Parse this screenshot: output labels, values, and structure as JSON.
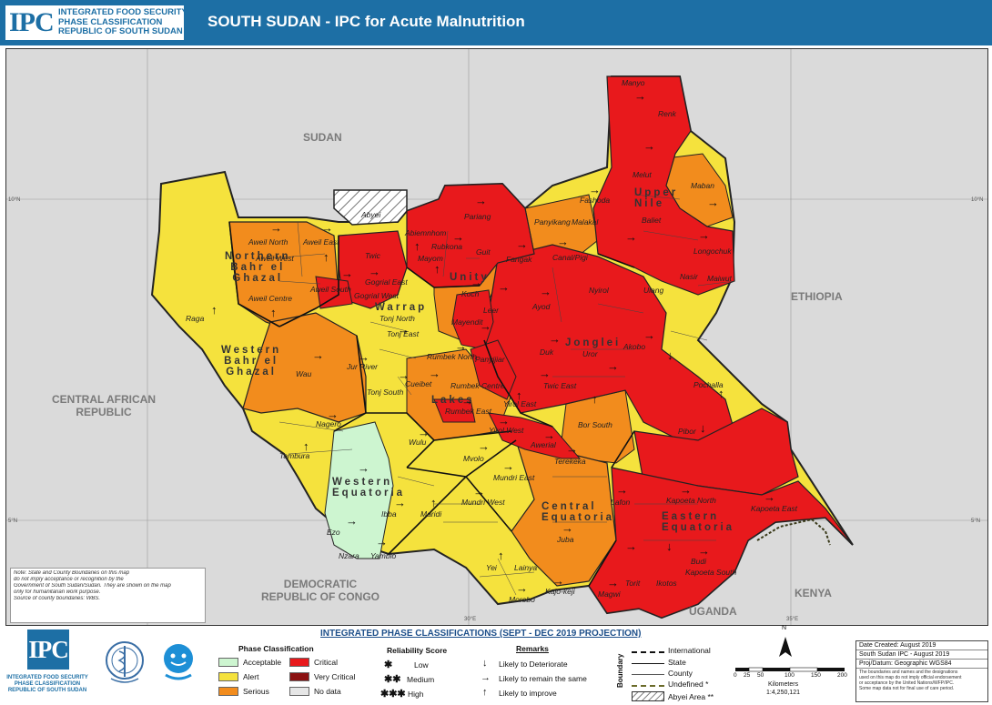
{
  "header": {
    "logo_text": "IPC",
    "org_lines": [
      "INTEGRATED FOOD SECURITY",
      "PHASE CLASSIFICATION",
      "REPUBLIC OF SOUTH SUDAN"
    ],
    "title": "SOUTH SUDAN - IPC for Acute Malnutrition"
  },
  "colors": {
    "acceptable": "#cdf5d0",
    "alert": "#f5e23d",
    "serious": "#f28c1d",
    "critical": "#e8191c",
    "very_critical": "#8b1111",
    "no_data": "#e6e6e6",
    "header": "#1d6fa5"
  },
  "map": {
    "countries": [
      {
        "name": "SUDAN"
      },
      {
        "name": "ETHIOPIA"
      },
      {
        "name": "CENTRAL AFRICAN\nREPUBLIC"
      },
      {
        "name": "DEMOCRATIC\nREPUBLIC OF CONGO"
      },
      {
        "name": "UGANDA"
      },
      {
        "name": "KENYA"
      }
    ],
    "states": [
      {
        "name": "Northern\nBahr el\nGhazal"
      },
      {
        "name": "Warrap"
      },
      {
        "name": "Unity"
      },
      {
        "name": "Upper\nNile"
      },
      {
        "name": "Western\nBahr el\nGhazal"
      },
      {
        "name": "Jonglei"
      },
      {
        "name": "Lakes"
      },
      {
        "name": "Western\nEquatoria"
      },
      {
        "name": "Central\nEquatoria"
      },
      {
        "name": "Eastern\nEquatoria"
      }
    ],
    "counties": [
      "Manyo",
      "Renk",
      "Melut",
      "Fashoda",
      "Maban",
      "Baliet",
      "Panyikang",
      "Malakal",
      "Longochuk",
      "Canal/Pigi",
      "Fangak",
      "Nasir",
      "Maiwut",
      "Ulang",
      "Pariang",
      "Abiemnhom",
      "Rubkona",
      "Guit",
      "Mayom",
      "Koch",
      "Leer",
      "Mayendit",
      "Panyijiar",
      "Ayod",
      "Uror",
      "Nyirol",
      "Akobo",
      "Duk",
      "Twic East",
      "Pochalla",
      "Bor South",
      "Pibor",
      "Abyei",
      "Twic",
      "Gogrial East",
      "Gogrial West",
      "Aweil North",
      "Aweil East",
      "Aweil West",
      "Aweil South",
      "Aweil Centre",
      "Tonj North",
      "Tonj East",
      "Tonj South",
      "Raga",
      "Jur River",
      "Wau",
      "Rumbek North",
      "Cueibet",
      "Rumbek Centre",
      "Rumbek East",
      "Yirol East",
      "Yirol West",
      "Awerial",
      "Nagero",
      "Tambura",
      "Wulu",
      "Mvolo",
      "Mundri East",
      "Mundri West",
      "Ibba",
      "Maridi",
      "Ezo",
      "Nzara",
      "Yambio",
      "Terekeka",
      "Juba",
      "Yei",
      "Lainya",
      "Morobo",
      "Kajo-keji",
      "Torit",
      "Lafon",
      "Kapoeta North",
      "Kapoeta East",
      "Kapoeta South",
      "Budi",
      "Ikotos",
      "Magwi"
    ],
    "coords": [
      "10°N",
      "10°N",
      "5°N",
      "5°N",
      "25°E",
      "30°E",
      "35°E"
    ],
    "note": [
      "Note: State and County Boundaries on this map",
      "do not imply acceptance or recognition by the",
      "Government of South Sudan/Sudan. They are shown on the map",
      "only for humanitarian work purpose.",
      "Source of county boundaries: WBS."
    ]
  },
  "legend": {
    "title": "INTEGRATED PHASE CLASSIFICATIONS (SEPT - DEC 2019 PROJECTION)",
    "ipc_org": [
      "INTEGRATED FOOD SECURITY",
      "PHASE CLASSIFICATION",
      "REPUBLIC OF SOUTH SUDAN"
    ],
    "phase_title": "Phase Classification",
    "phases": [
      "Acceptable",
      "Critical",
      "Alert",
      "Very Critical",
      "Serious",
      "No data"
    ],
    "reliability_title": "Reliability Score",
    "reliability": [
      {
        "symbol": "✱",
        "label": "Low"
      },
      {
        "symbol": "✱✱",
        "label": "Medium"
      },
      {
        "symbol": "✱✱✱",
        "label": "High"
      }
    ],
    "remarks_title": "Remarks",
    "remarks": [
      {
        "symbol": "↓",
        "label": "Likely to Deteriorate"
      },
      {
        "symbol": "→",
        "label": "Likely to remain the same"
      },
      {
        "symbol": "↑",
        "label": "Likely to improve"
      }
    ],
    "boundary_title": "Boundary",
    "boundaries": [
      "International",
      "State",
      "County",
      "Undefined *",
      "Abyei Area **"
    ],
    "scale_ticks": [
      "0",
      "25",
      "50",
      "100",
      "150",
      "200"
    ],
    "scale_unit": "Kilometers",
    "scale_ratio": "1:4,250,121",
    "north": "N",
    "info": [
      "Date Created: August 2019",
      "South Sudan IPC - August 2019",
      "Proj/Datum: Geographic WGS84"
    ],
    "disclaimer": [
      "The boundaries and names and the designations",
      "used on this map do not imply official endorsement",
      "or acceptance by the United Nations/WFP/IPC.",
      "Some map data not for final use of care period."
    ]
  }
}
